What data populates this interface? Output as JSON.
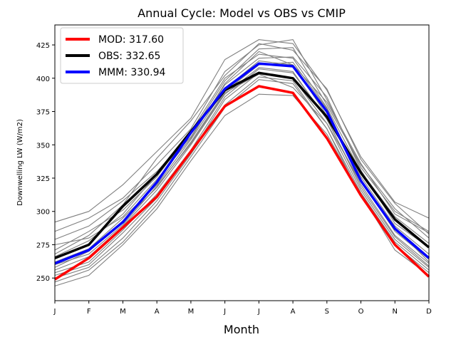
{
  "chart_data": {
    "type": "line",
    "title": "Annual Cycle: Model vs OBS vs CMIP",
    "xlabel": "Month",
    "ylabel": "Downwelling LW (W/m2)",
    "categories": [
      "J",
      "F",
      "M",
      "A",
      "M",
      "J",
      "J",
      "A",
      "S",
      "O",
      "N",
      "D"
    ],
    "ylim": [
      233,
      440
    ],
    "yticks": [
      250,
      275,
      300,
      325,
      350,
      375,
      400,
      425
    ],
    "grid": false,
    "legend_position": "top-left",
    "colors": {
      "mod": "#ff0000",
      "obs": "#000000",
      "mmm": "#0000ff",
      "cmip": "#808080"
    },
    "series": [
      {
        "name": "MOD",
        "label": "MOD: 317.60",
        "color": "#ff0000",
        "values": [
          249,
          265,
          288,
          311,
          345,
          379,
          394,
          389,
          355,
          312,
          275,
          251
        ]
      },
      {
        "name": "OBS",
        "label": "OBS: 332.65",
        "color": "#000000",
        "values": [
          265,
          275,
          304,
          328,
          360,
          391,
          404,
          400,
          371,
          329,
          294,
          273
        ]
      },
      {
        "name": "MMM",
        "label": "MMM: 330.94",
        "color": "#0000ff",
        "values": [
          261,
          271,
          292,
          322,
          359,
          392,
          411,
          409,
          375,
          323,
          287,
          265
        ]
      }
    ],
    "cmip_models": [
      [
        292,
        300,
        320,
        345,
        370,
        414,
        429,
        426,
        391,
        341,
        307,
        295
      ],
      [
        285,
        295,
        310,
        335,
        362,
        405,
        425,
        429,
        384,
        333,
        300,
        285
      ],
      [
        279,
        289,
        308,
        330,
        358,
        398,
        422,
        423,
        380,
        335,
        302,
        280
      ],
      [
        271,
        285,
        301,
        326,
        360,
        400,
        418,
        415,
        378,
        330,
        296,
        276
      ],
      [
        266,
        278,
        298,
        328,
        356,
        395,
        415,
        416,
        386,
        331,
        291,
        273
      ],
      [
        262,
        272,
        295,
        320,
        354,
        392,
        413,
        410,
        372,
        326,
        289,
        268
      ],
      [
        258,
        270,
        293,
        318,
        352,
        390,
        410,
        412,
        377,
        324,
        285,
        264
      ],
      [
        256,
        266,
        289,
        316,
        350,
        388,
        408,
        405,
        369,
        320,
        282,
        261
      ],
      [
        254,
        262,
        286,
        313,
        346,
        386,
        407,
        404,
        370,
        318,
        281,
        259
      ],
      [
        252,
        260,
        284,
        310,
        344,
        384,
        404,
        400,
        366,
        316,
        279,
        258
      ],
      [
        250,
        258,
        280,
        308,
        343,
        380,
        401,
        398,
        362,
        314,
        277,
        256
      ],
      [
        247,
        256,
        277,
        305,
        341,
        378,
        399,
        396,
        362,
        311,
        275,
        254
      ],
      [
        244,
        252,
        275,
        302,
        338,
        372,
        388,
        387,
        358,
        313,
        271,
        252
      ],
      [
        268,
        282,
        305,
        340,
        368,
        402,
        426,
        421,
        392,
        339,
        306,
        283
      ],
      [
        275,
        280,
        296,
        324,
        355,
        396,
        420,
        410,
        382,
        336,
        298,
        284
      ],
      [
        260,
        268,
        290,
        319,
        351,
        389,
        403,
        393,
        366,
        322,
        288,
        262
      ]
    ]
  }
}
